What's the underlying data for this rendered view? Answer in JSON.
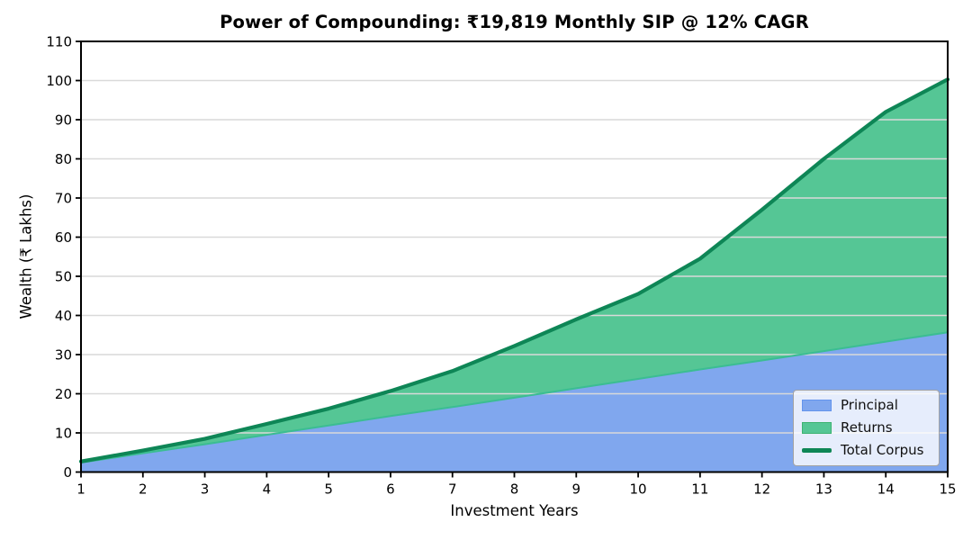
{
  "chart_data": {
    "type": "area",
    "title": "Power of Compounding: ₹19,819 Monthly SIP @ 12% CAGR",
    "xlabel": "Investment Years",
    "ylabel": "Wealth (₹ Lakhs)",
    "x": [
      1,
      2,
      3,
      4,
      5,
      6,
      7,
      8,
      9,
      10,
      11,
      12,
      13,
      14,
      15
    ],
    "series": [
      {
        "name": "Principal",
        "kind": "area",
        "values": [
          2.4,
          4.8,
          7.1,
          9.5,
          11.9,
          14.3,
          16.6,
          19.0,
          21.4,
          23.8,
          26.2,
          28.5,
          30.9,
          33.3,
          35.7
        ]
      },
      {
        "name": "Returns",
        "kind": "area-stacked",
        "values": [
          0.3,
          0.7,
          1.4,
          2.8,
          4.3,
          6.4,
          9.2,
          13.2,
          17.6,
          21.7,
          28.3,
          38.5,
          49.1,
          58.7,
          64.6
        ]
      },
      {
        "name": "Total Corpus",
        "kind": "line",
        "values": [
          2.7,
          5.5,
          8.5,
          12.3,
          16.2,
          20.7,
          25.8,
          32.2,
          39.0,
          45.5,
          54.5,
          67.0,
          80.0,
          92.0,
          100.3
        ]
      }
    ],
    "xlim": [
      1,
      15
    ],
    "ylim": [
      0,
      110
    ],
    "xticks": [
      1,
      2,
      3,
      4,
      5,
      6,
      7,
      8,
      9,
      10,
      11,
      12,
      13,
      14,
      15
    ],
    "yticks": [
      0,
      10,
      20,
      30,
      40,
      50,
      60,
      70,
      80,
      90,
      100,
      110
    ],
    "grid": "horizontal-only",
    "legend_position": "lower-right",
    "colors": {
      "principal_fill": "#80a7ee",
      "principal_edge": "#3bbd92",
      "returns_fill": "#55c695",
      "total_line": "#0e8656",
      "grid": "#d9d9d9",
      "spine": "#000000",
      "legend_border": "#a3a3a3"
    }
  },
  "legend": {
    "items": [
      {
        "label": "Principal"
      },
      {
        "label": "Returns"
      },
      {
        "label": "Total Corpus"
      }
    ]
  }
}
